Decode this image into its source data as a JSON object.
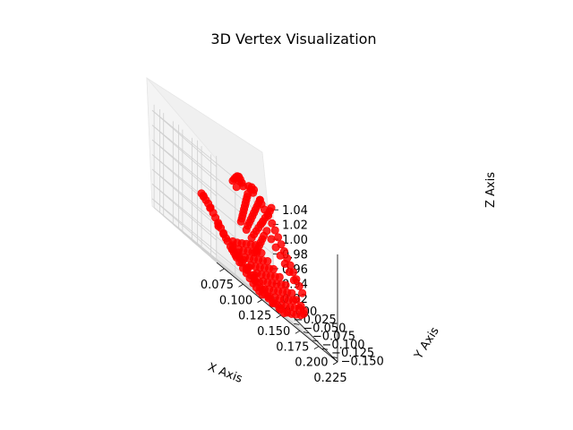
{
  "chart_data": {
    "type": "scatter",
    "title": "3D Vertex Visualization",
    "xlabel": "X Axis",
    "ylabel": "Y Axis",
    "zlabel": "Z Axis",
    "xlim": [
      0.065,
      0.225
    ],
    "ylim": [
      -0.165,
      0.005
    ],
    "zlim": [
      0.91,
      1.05
    ],
    "x_ticks": [
      0.075,
      0.1,
      0.125,
      0.15,
      0.175,
      0.2,
      0.225
    ],
    "x_tick_labels": [
      "0.075",
      "0.100",
      "0.125",
      "0.150",
      "0.175",
      "0.200",
      "0.225"
    ],
    "y_ticks": [
      0.0,
      -0.025,
      -0.05,
      -0.075,
      -0.1,
      -0.125,
      -0.15
    ],
    "y_tick_labels": [
      "0.000",
      "−0.025",
      "−0.050",
      "−0.075",
      "−0.100",
      "−0.125",
      "−0.150"
    ],
    "z_ticks": [
      0.92,
      0.94,
      0.96,
      0.98,
      1.0,
      1.02,
      1.04
    ],
    "z_tick_labels": [
      "0.92",
      "0.94",
      "0.96",
      "0.98",
      "1.00",
      "1.02",
      "1.04"
    ],
    "grid": true,
    "marker_color": "#ff0000",
    "series": [
      {
        "points": [
          [
            0.08,
            -0.095,
            0.985
          ],
          [
            0.082,
            -0.097,
            0.983
          ],
          [
            0.084,
            -0.099,
            0.981
          ],
          [
            0.083,
            -0.094,
            0.984
          ],
          [
            0.086,
            -0.101,
            0.979
          ],
          [
            0.088,
            -0.103,
            0.976
          ],
          [
            0.09,
            -0.106,
            0.972
          ],
          [
            0.089,
            -0.1,
            0.975
          ],
          [
            0.092,
            -0.108,
            0.968
          ],
          [
            0.094,
            -0.111,
            0.964
          ],
          [
            0.096,
            -0.114,
            0.96
          ],
          [
            0.098,
            -0.117,
            0.956
          ],
          [
            0.1,
            -0.12,
            0.952
          ],
          [
            0.095,
            -0.11,
            0.96
          ],
          [
            0.097,
            -0.106,
            0.962
          ],
          [
            0.101,
            -0.112,
            0.955
          ],
          [
            0.103,
            -0.118,
            0.95
          ],
          [
            0.105,
            -0.122,
            0.946
          ],
          [
            0.108,
            -0.125,
            0.942
          ],
          [
            0.11,
            -0.128,
            0.938
          ],
          [
            0.104,
            -0.128,
            0.944
          ],
          [
            0.107,
            -0.131,
            0.94
          ],
          [
            0.112,
            -0.132,
            0.935
          ],
          [
            0.115,
            -0.135,
            0.931
          ],
          [
            0.118,
            -0.138,
            0.928
          ],
          [
            0.121,
            -0.141,
            0.925
          ],
          [
            0.124,
            -0.144,
            0.922
          ],
          [
            0.127,
            -0.146,
            0.92
          ],
          [
            0.13,
            -0.148,
            0.918
          ],
          [
            0.133,
            -0.15,
            0.917
          ],
          [
            0.11,
            -0.118,
            0.945
          ],
          [
            0.114,
            -0.122,
            0.941
          ],
          [
            0.118,
            -0.126,
            0.937
          ],
          [
            0.122,
            -0.13,
            0.933
          ],
          [
            0.126,
            -0.134,
            0.93
          ],
          [
            0.13,
            -0.138,
            0.927
          ],
          [
            0.134,
            -0.142,
            0.924
          ],
          [
            0.138,
            -0.146,
            0.921
          ],
          [
            0.142,
            -0.149,
            0.919
          ],
          [
            0.146,
            -0.152,
            0.917
          ],
          [
            0.115,
            -0.108,
            0.95
          ],
          [
            0.12,
            -0.112,
            0.946
          ],
          [
            0.125,
            -0.116,
            0.942
          ],
          [
            0.13,
            -0.12,
            0.938
          ],
          [
            0.135,
            -0.124,
            0.934
          ],
          [
            0.14,
            -0.128,
            0.93
          ],
          [
            0.145,
            -0.132,
            0.926
          ],
          [
            0.15,
            -0.136,
            0.922
          ],
          [
            0.155,
            -0.14,
            0.919
          ],
          [
            0.16,
            -0.144,
            0.917
          ],
          [
            0.12,
            -0.098,
            0.955
          ],
          [
            0.126,
            -0.102,
            0.951
          ],
          [
            0.132,
            -0.106,
            0.947
          ],
          [
            0.138,
            -0.11,
            0.943
          ],
          [
            0.144,
            -0.114,
            0.939
          ],
          [
            0.15,
            -0.118,
            0.935
          ],
          [
            0.156,
            -0.122,
            0.931
          ],
          [
            0.162,
            -0.126,
            0.927
          ],
          [
            0.168,
            -0.13,
            0.923
          ],
          [
            0.174,
            -0.134,
            0.92
          ],
          [
            0.13,
            -0.09,
            0.958
          ],
          [
            0.136,
            -0.094,
            0.954
          ],
          [
            0.142,
            -0.098,
            0.95
          ],
          [
            0.148,
            -0.102,
            0.946
          ],
          [
            0.154,
            -0.106,
            0.942
          ],
          [
            0.16,
            -0.11,
            0.938
          ],
          [
            0.166,
            -0.114,
            0.934
          ],
          [
            0.172,
            -0.118,
            0.93
          ],
          [
            0.178,
            -0.122,
            0.926
          ],
          [
            0.184,
            -0.126,
            0.923
          ],
          [
            0.14,
            -0.082,
            0.962
          ],
          [
            0.146,
            -0.086,
            0.958
          ],
          [
            0.152,
            -0.09,
            0.954
          ],
          [
            0.158,
            -0.094,
            0.95
          ],
          [
            0.164,
            -0.098,
            0.946
          ],
          [
            0.17,
            -0.102,
            0.942
          ],
          [
            0.176,
            -0.106,
            0.938
          ],
          [
            0.182,
            -0.11,
            0.934
          ],
          [
            0.188,
            -0.114,
            0.93
          ],
          [
            0.194,
            -0.118,
            0.927
          ],
          [
            0.15,
            -0.074,
            0.966
          ],
          [
            0.156,
            -0.078,
            0.962
          ],
          [
            0.162,
            -0.082,
            0.958
          ],
          [
            0.168,
            -0.086,
            0.954
          ],
          [
            0.174,
            -0.09,
            0.95
          ],
          [
            0.18,
            -0.094,
            0.946
          ],
          [
            0.186,
            -0.098,
            0.942
          ],
          [
            0.192,
            -0.102,
            0.938
          ],
          [
            0.198,
            -0.106,
            0.934
          ],
          [
            0.204,
            -0.11,
            0.931
          ],
          [
            0.16,
            -0.066,
            0.97
          ],
          [
            0.166,
            -0.07,
            0.966
          ],
          [
            0.172,
            -0.074,
            0.962
          ],
          [
            0.178,
            -0.078,
            0.958
          ],
          [
            0.184,
            -0.082,
            0.954
          ],
          [
            0.19,
            -0.086,
            0.95
          ],
          [
            0.196,
            -0.09,
            0.946
          ],
          [
            0.202,
            -0.094,
            0.942
          ],
          [
            0.208,
            -0.098,
            0.939
          ],
          [
            0.212,
            -0.102,
            0.936
          ],
          [
            0.17,
            -0.058,
            0.974
          ],
          [
            0.176,
            -0.062,
            0.97
          ],
          [
            0.182,
            -0.066,
            0.966
          ],
          [
            0.188,
            -0.07,
            0.962
          ],
          [
            0.194,
            -0.074,
            0.958
          ],
          [
            0.2,
            -0.078,
            0.954
          ],
          [
            0.206,
            -0.082,
            0.95
          ],
          [
            0.21,
            -0.086,
            0.946
          ],
          [
            0.214,
            -0.09,
            0.943
          ],
          [
            0.216,
            -0.094,
            0.94
          ],
          [
            0.15,
            -0.06,
            0.99
          ],
          [
            0.152,
            -0.058,
            0.995
          ],
          [
            0.154,
            -0.056,
            1.0
          ],
          [
            0.156,
            -0.054,
            1.005
          ],
          [
            0.158,
            -0.052,
            1.01
          ],
          [
            0.16,
            -0.05,
            1.015
          ],
          [
            0.162,
            -0.048,
            1.02
          ],
          [
            0.164,
            -0.046,
            1.025
          ],
          [
            0.166,
            -0.044,
            1.03
          ],
          [
            0.168,
            -0.042,
            1.035
          ],
          [
            0.155,
            -0.064,
            0.985
          ],
          [
            0.158,
            -0.062,
            0.992
          ],
          [
            0.161,
            -0.06,
            0.998
          ],
          [
            0.164,
            -0.058,
            1.004
          ],
          [
            0.167,
            -0.056,
            1.01
          ],
          [
            0.17,
            -0.054,
            1.016
          ],
          [
            0.173,
            -0.052,
            1.022
          ],
          [
            0.176,
            -0.05,
            1.028
          ],
          [
            0.179,
            -0.048,
            1.034
          ],
          [
            0.182,
            -0.046,
            1.04
          ],
          [
            0.16,
            -0.068,
            0.98
          ],
          [
            0.164,
            -0.066,
            0.987
          ],
          [
            0.168,
            -0.064,
            0.994
          ],
          [
            0.172,
            -0.062,
            1.001
          ],
          [
            0.176,
            -0.06,
            1.008
          ],
          [
            0.18,
            -0.058,
            1.015
          ],
          [
            0.184,
            -0.056,
            1.022
          ],
          [
            0.188,
            -0.054,
            1.029
          ],
          [
            0.192,
            -0.052,
            1.036
          ],
          [
            0.195,
            -0.05,
            1.042
          ],
          [
            0.145,
            -0.052,
            1.04
          ],
          [
            0.148,
            -0.05,
            1.044
          ],
          [
            0.151,
            -0.048,
            1.047
          ],
          [
            0.154,
            -0.046,
            1.048
          ],
          [
            0.157,
            -0.044,
            1.046
          ],
          [
            0.141,
            -0.056,
            1.036
          ],
          [
            0.144,
            -0.06,
            1.032
          ],
          [
            0.16,
            -0.042,
            1.043
          ],
          [
            0.163,
            -0.04,
            1.04
          ],
          [
            0.15,
            -0.056,
            1.043
          ],
          [
            0.17,
            -0.04,
            1.046
          ],
          [
            0.174,
            -0.038,
            1.044
          ],
          [
            0.178,
            -0.036,
            1.042
          ],
          [
            0.172,
            -0.044,
            1.048
          ],
          [
            0.176,
            -0.042,
            1.047
          ],
          [
            0.185,
            -0.04,
            1.04
          ],
          [
            0.188,
            -0.038,
            1.036
          ],
          [
            0.19,
            -0.042,
            1.032
          ],
          [
            0.193,
            -0.046,
            1.028
          ],
          [
            0.196,
            -0.05,
            1.022
          ],
          [
            0.198,
            -0.054,
            1.016
          ],
          [
            0.2,
            -0.058,
            1.01
          ],
          [
            0.202,
            -0.062,
            1.004
          ],
          [
            0.204,
            -0.066,
            0.998
          ],
          [
            0.206,
            -0.07,
            0.992
          ],
          [
            0.208,
            -0.074,
            0.986
          ],
          [
            0.21,
            -0.078,
            0.98
          ],
          [
            0.212,
            -0.082,
            0.974
          ],
          [
            0.214,
            -0.086,
            0.968
          ],
          [
            0.216,
            -0.09,
            0.962
          ],
          [
            0.19,
            -0.06,
            1.0
          ],
          [
            0.194,
            -0.064,
            0.994
          ],
          [
            0.198,
            -0.068,
            0.988
          ],
          [
            0.202,
            -0.072,
            0.982
          ],
          [
            0.206,
            -0.076,
            0.976
          ],
          [
            0.21,
            -0.08,
            0.97
          ],
          [
            0.186,
            -0.056,
            1.006
          ],
          [
            0.182,
            -0.052,
            1.012
          ],
          [
            0.178,
            -0.064,
            0.996
          ],
          [
            0.174,
            -0.068,
            0.99
          ],
          [
            0.17,
            -0.072,
            0.984
          ],
          [
            0.166,
            -0.076,
            0.978
          ],
          [
            0.162,
            -0.08,
            0.972
          ],
          [
            0.158,
            -0.084,
            0.968
          ],
          [
            0.154,
            -0.088,
            0.964
          ],
          [
            0.135,
            -0.085,
            0.94
          ],
          [
            0.14,
            -0.095,
            0.935
          ],
          [
            0.145,
            -0.105,
            0.93
          ],
          [
            0.138,
            -0.1,
            0.932
          ],
          [
            0.143,
            -0.11,
            0.927
          ],
          [
            0.148,
            -0.12,
            0.923
          ],
          [
            0.153,
            -0.125,
            0.92
          ],
          [
            0.158,
            -0.13,
            0.918
          ],
          [
            0.163,
            -0.135,
            0.917
          ],
          [
            0.168,
            -0.138,
            0.916
          ]
        ]
      }
    ]
  }
}
